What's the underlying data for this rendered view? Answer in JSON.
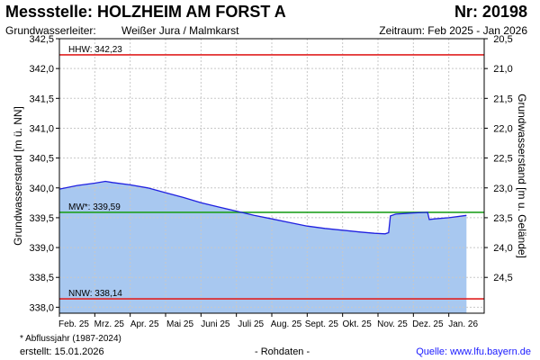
{
  "header": {
    "title": "Messstelle: HOLZHEIM AM FORST A",
    "nr": "Nr: 20198",
    "aquifer_label": "Grundwasserleiter:",
    "aquifer_value": "Weißer Jura / Malmkarst",
    "period": "Zeitraum: Feb 2025 - Jan 2026"
  },
  "footer": {
    "footnote": "* Abflussjahr (1987-2024)",
    "created": "erstellt:  15.01.2026",
    "rawdata": "- Rohdaten -",
    "source": "Quelle:  www.lfu.bayern.de"
  },
  "colors": {
    "fill": "#a8c8f0",
    "line": "#2020e0",
    "extreme_line": "#e02020",
    "mean_line": "#20a020",
    "grid": "#c8c8c8"
  },
  "chart_data": {
    "type": "area",
    "ylabel": "Grundwasserstand [m ü. NN]",
    "ylabel_right": "Grundwasserstand [m u. Gelände]",
    "ylim": [
      337.9,
      342.5
    ],
    "xlim": [
      0,
      12
    ],
    "yticks": [
      "338,0",
      "338,5",
      "339,0",
      "339,5",
      "340,0",
      "340,5",
      "341,0",
      "341,5",
      "342,0",
      "342,5"
    ],
    "ytick_values": [
      338.0,
      338.5,
      339.0,
      339.5,
      340.0,
      340.5,
      341.0,
      341.5,
      342.0,
      342.5
    ],
    "right_ticks": [
      "20,5",
      "21,0",
      "21,5",
      "22,0",
      "22,5",
      "23,0",
      "23,5",
      "24,0",
      "24,5"
    ],
    "right_tick_values": [
      342.5,
      342.0,
      341.5,
      341.0,
      340.5,
      340.0,
      339.5,
      339.0,
      338.5
    ],
    "x_ticks": [
      "Feb. 25",
      "Mrz. 25",
      "Apr. 25",
      "Mai 25",
      "Juni 25",
      "Juli 25",
      "Aug. 25",
      "Sept. 25",
      "Okt. 25",
      "Nov. 25",
      "Dez. 25",
      "Jan. 26"
    ],
    "grid": true,
    "series": [
      {
        "values": [
          [
            0.0,
            339.98
          ],
          [
            0.5,
            340.04
          ],
          [
            1.0,
            340.08
          ],
          [
            1.3,
            340.11
          ],
          [
            1.5,
            340.09
          ],
          [
            2.0,
            340.05
          ],
          [
            2.5,
            340.0
          ],
          [
            3.0,
            339.92
          ],
          [
            3.5,
            339.84
          ],
          [
            4.0,
            339.75
          ],
          [
            4.5,
            339.68
          ],
          [
            5.0,
            339.61
          ],
          [
            5.5,
            339.54
          ],
          [
            6.0,
            339.48
          ],
          [
            6.5,
            339.42
          ],
          [
            7.0,
            339.36
          ],
          [
            7.5,
            339.32
          ],
          [
            8.0,
            339.29
          ],
          [
            8.5,
            339.26
          ],
          [
            8.9,
            339.24
          ],
          [
            9.2,
            339.23
          ],
          [
            9.3,
            339.25
          ],
          [
            9.35,
            339.53
          ],
          [
            9.5,
            339.56
          ],
          [
            10.0,
            339.58
          ],
          [
            10.4,
            339.59
          ],
          [
            10.45,
            339.47
          ],
          [
            10.6,
            339.48
          ],
          [
            11.0,
            339.5
          ],
          [
            11.5,
            339.54
          ]
        ]
      }
    ],
    "reference_lines": [
      {
        "label": "HHW: 342,23",
        "value": 342.23,
        "type": "extreme"
      },
      {
        "label": "MW*: 339,59",
        "value": 339.59,
        "type": "mean"
      },
      {
        "label": "NNW: 338,14",
        "value": 338.14,
        "type": "extreme"
      }
    ]
  }
}
